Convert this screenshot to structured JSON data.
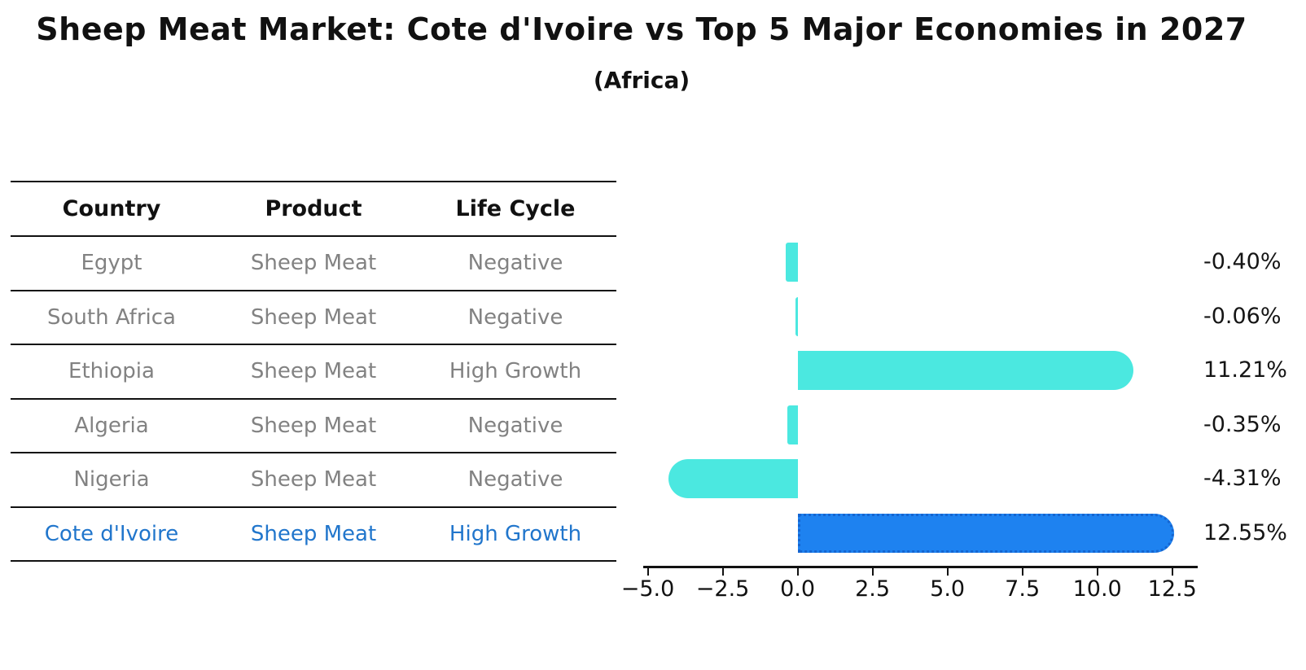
{
  "title": "Sheep Meat Market: Cote d'Ivoire vs Top 5 Major Economies in 2027",
  "subtitle": "(Africa)",
  "table": {
    "columns": [
      "Country",
      "Product",
      "Life Cycle"
    ],
    "rows": [
      {
        "country": "Egypt",
        "product": "Sheep Meat",
        "life_cycle": "Negative",
        "highlighted": false
      },
      {
        "country": "South Africa",
        "product": "Sheep Meat",
        "life_cycle": "Negative",
        "highlighted": false
      },
      {
        "country": "Ethiopia",
        "product": "Sheep Meat",
        "life_cycle": "High Growth",
        "highlighted": false
      },
      {
        "country": "Algeria",
        "product": "Sheep Meat",
        "life_cycle": "Negative",
        "highlighted": false
      },
      {
        "country": "Nigeria",
        "product": "Sheep Meat",
        "life_cycle": "Negative",
        "highlighted": false
      },
      {
        "country": "Cote d'Ivoire",
        "product": "Sheep Meat",
        "life_cycle": "High Growth",
        "highlighted": true
      }
    ]
  },
  "chart_data": {
    "type": "bar",
    "orientation": "horizontal",
    "title": "Sheep Meat Market: Cote d'Ivoire vs Top 5 Major Economies in 2027",
    "subtitle": "(Africa)",
    "categories": [
      "Egypt",
      "South Africa",
      "Ethiopia",
      "Algeria",
      "Nigeria",
      "Cote d'Ivoire"
    ],
    "values": [
      -0.4,
      -0.06,
      11.21,
      -0.35,
      -4.31,
      12.55
    ],
    "value_labels": [
      "-0.40%",
      "-0.06%",
      "11.21%",
      "-0.35%",
      "-4.31%",
      "12.55%"
    ],
    "highlighted_category": "Cote d'Ivoire",
    "xlim": [
      -5.15,
      13.35
    ],
    "x_ticks": [
      -5.0,
      -2.5,
      0.0,
      2.5,
      5.0,
      7.5,
      10.0,
      12.5
    ],
    "x_tick_labels": [
      "−5.0",
      "−2.5",
      "0.0",
      "2.5",
      "5.0",
      "7.5",
      "10.0",
      "12.5"
    ],
    "grid": false,
    "legend": false,
    "colors": {
      "bar_default": "#4BE8E0",
      "bar_highlight": "#1E82F0",
      "bar_highlight_border": "#1565D0",
      "highlight_text": "#2176cc",
      "row_text": "#828282",
      "axis_text": "#111111"
    }
  }
}
